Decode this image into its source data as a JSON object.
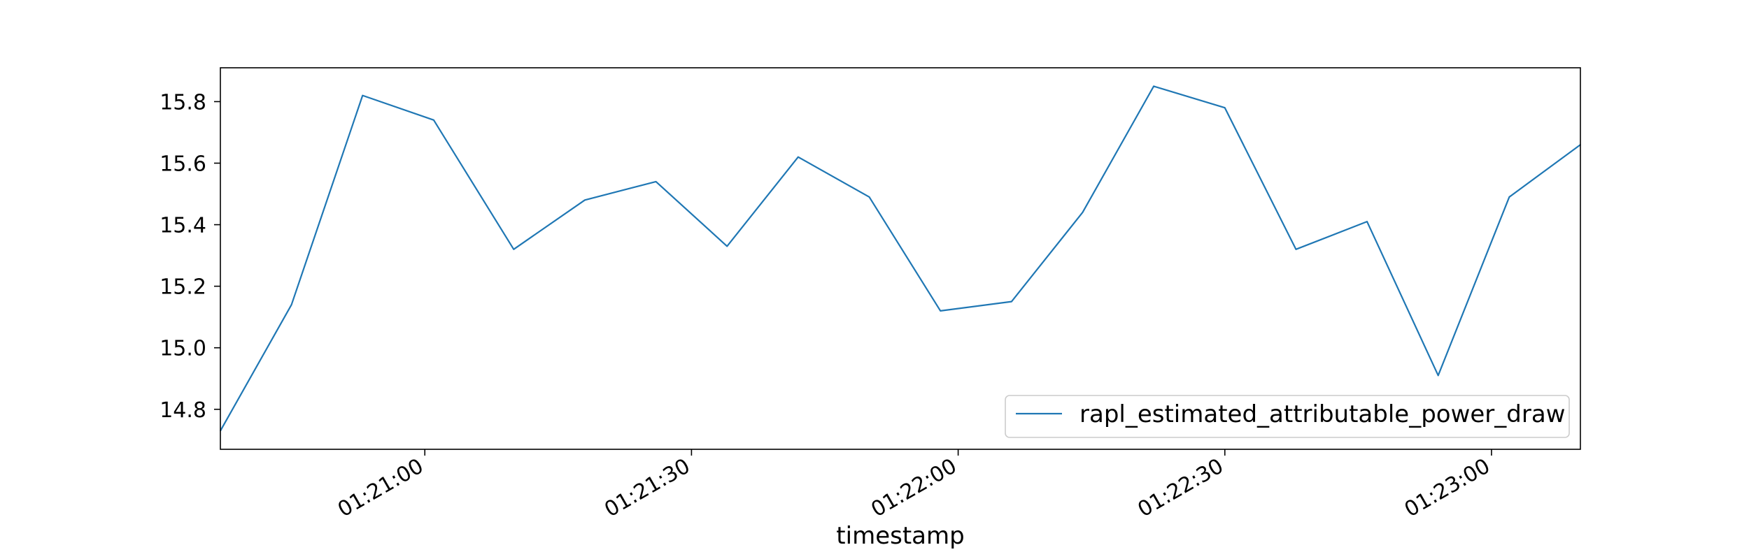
{
  "chart_data": {
    "type": "line",
    "title": "",
    "xlabel": "timestamp",
    "ylabel": "",
    "x_tick_labels": [
      "01:21:00",
      "01:21:30",
      "01:22:00",
      "01:22:30",
      "01:23:00"
    ],
    "y_tick_labels": [
      "14.8",
      "15.0",
      "15.2",
      "15.4",
      "15.6",
      "15.8"
    ],
    "y_ticks": [
      14.8,
      15.0,
      15.2,
      15.4,
      15.6,
      15.8
    ],
    "ylim": [
      14.67,
      15.91
    ],
    "xlim": [
      "01:20:37",
      "01:23:10"
    ],
    "grid": false,
    "legend_position": "lower-right",
    "series": [
      {
        "name": "rapl_estimated_attributable_power_draw",
        "color": "#1f77b4",
        "x": [
          "01:20:37",
          "01:20:45",
          "01:20:53",
          "01:21:01",
          "01:21:10",
          "01:21:18",
          "01:21:26",
          "01:21:34",
          "01:21:42",
          "01:21:50",
          "01:21:58",
          "01:22:06",
          "01:22:14",
          "01:22:22",
          "01:22:30",
          "01:22:38",
          "01:22:46",
          "01:22:54",
          "01:23:02",
          "01:23:10"
        ],
        "values": [
          14.73,
          15.14,
          15.82,
          15.74,
          15.32,
          15.48,
          15.54,
          15.33,
          15.62,
          15.49,
          15.12,
          15.15,
          15.44,
          15.85,
          15.78,
          15.32,
          15.41,
          14.91,
          15.49,
          15.66
        ]
      }
    ]
  }
}
